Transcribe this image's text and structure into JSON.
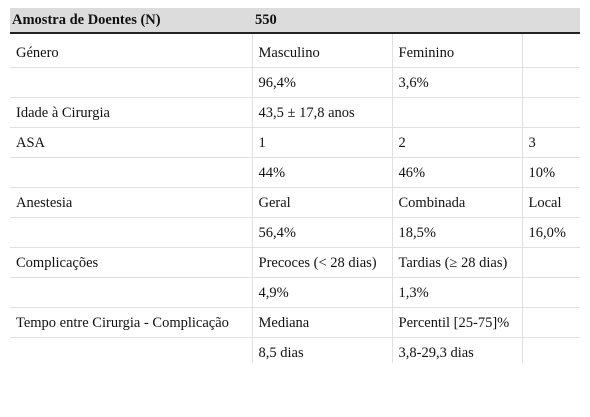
{
  "header": {
    "label": "Amostra de Doentes (N)",
    "value": "550"
  },
  "rows": [
    [
      "Género",
      "Masculino",
      "Feminino",
      ""
    ],
    [
      "",
      "96,4%",
      "3,6%",
      ""
    ],
    [
      "Idade à Cirurgia",
      "43,5 ± 17,8 anos",
      "",
      ""
    ],
    [
      "ASA",
      "1",
      "2",
      "3"
    ],
    [
      "",
      "44%",
      "46%",
      "10%"
    ],
    [
      "Anestesia",
      "Geral",
      "Combinada",
      "Local"
    ],
    [
      "",
      "56,4%",
      "18,5%",
      "16,0%"
    ],
    [
      "Complicações",
      "Precoces (< 28 dias)",
      "Tardias (≥ 28 dias)",
      ""
    ],
    [
      "",
      "4,9%",
      "1,3%",
      ""
    ],
    [
      "Tempo entre Cirurgia - Complicação",
      "Mediana",
      "Percentil [25-75]%",
      ""
    ],
    [
      "",
      "8,5 dias",
      "3,8-29,3 dias",
      ""
    ]
  ]
}
